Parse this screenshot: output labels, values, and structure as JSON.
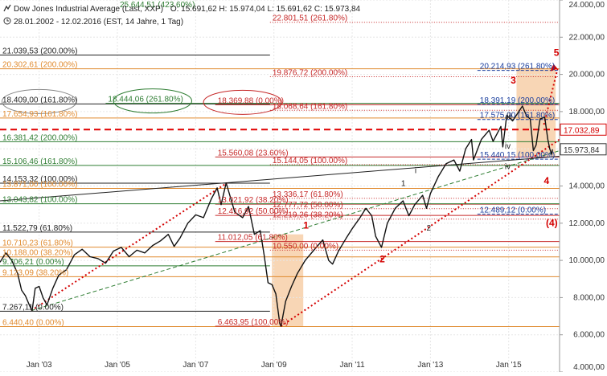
{
  "header": {
    "instrument": "Dow Jones Industrial Average (Last, XXP)",
    "ohlc": "O: 15.691,62  H: 15.974,04  L: 15.691,62  C: 15.973,84",
    "range": "28.01.2002 - 12.02.2016 (EST, 14 Jahre, 1 Tag)"
  },
  "chart_data": {
    "type": "line",
    "ylim": [
      4000,
      24000
    ],
    "y_ticks": [
      "4.000,00",
      "6.000,00",
      "8.000,00",
      "10.000,00",
      "12.000,00",
      "14.000,00",
      "16.000,00",
      "18.000,00",
      "20.000,00",
      "22.000,00",
      "24.000,00"
    ],
    "y_tick_values": [
      4000,
      6000,
      8000,
      10000,
      12000,
      14000,
      16000,
      18000,
      20000,
      22000,
      24000
    ],
    "x_ticks": [
      "Jan '03",
      "Jan '05",
      "Jan '07",
      "Jan '09",
      "Jan '11",
      "Jan '13",
      "Jan '15"
    ],
    "x_tick_years": [
      2003,
      2005,
      2007,
      2009,
      2011,
      2013,
      2015
    ],
    "xlim": [
      2002.0,
      2016.3
    ],
    "series": [
      {
        "values": [
          [
            2002.0,
            9900
          ],
          [
            2002.15,
            10400
          ],
          [
            2002.3,
            10000
          ],
          [
            2002.45,
            9300
          ],
          [
            2002.55,
            8400
          ],
          [
            2002.65,
            8100
          ],
          [
            2002.75,
            7600
          ],
          [
            2002.82,
            7290
          ],
          [
            2002.9,
            8500
          ],
          [
            2003.0,
            8600
          ],
          [
            2003.1,
            8000
          ],
          [
            2003.2,
            7600
          ],
          [
            2003.35,
            8500
          ],
          [
            2003.5,
            9200
          ],
          [
            2003.7,
            9500
          ],
          [
            2003.9,
            10300
          ],
          [
            2004.1,
            10600
          ],
          [
            2004.3,
            10200
          ],
          [
            2004.5,
            10100
          ],
          [
            2004.7,
            9850
          ],
          [
            2004.9,
            10500
          ],
          [
            2005.1,
            10700
          ],
          [
            2005.3,
            10200
          ],
          [
            2005.5,
            10550
          ],
          [
            2005.7,
            10400
          ],
          [
            2005.9,
            10800
          ],
          [
            2006.1,
            11050
          ],
          [
            2006.3,
            11400
          ],
          [
            2006.45,
            10750
          ],
          [
            2006.6,
            11200
          ],
          [
            2006.8,
            12000
          ],
          [
            2007.0,
            12450
          ],
          [
            2007.2,
            12300
          ],
          [
            2007.4,
            13300
          ],
          [
            2007.55,
            13900
          ],
          [
            2007.65,
            13000
          ],
          [
            2007.78,
            14164
          ],
          [
            2007.9,
            13300
          ],
          [
            2008.0,
            12600
          ],
          [
            2008.2,
            12300
          ],
          [
            2008.35,
            12900
          ],
          [
            2008.5,
            11400
          ],
          [
            2008.65,
            11600
          ],
          [
            2008.75,
            10300
          ],
          [
            2008.85,
            8800
          ],
          [
            2008.95,
            8700
          ],
          [
            2009.05,
            8200
          ],
          [
            2009.15,
            6600
          ],
          [
            2009.18,
            6464
          ],
          [
            2009.3,
            7800
          ],
          [
            2009.45,
            8600
          ],
          [
            2009.6,
            9300
          ],
          [
            2009.8,
            10000
          ],
          [
            2010.0,
            10500
          ],
          [
            2010.25,
            11100
          ],
          [
            2010.4,
            10000
          ],
          [
            2010.5,
            9800
          ],
          [
            2010.65,
            10500
          ],
          [
            2010.85,
            11200
          ],
          [
            2011.0,
            11700
          ],
          [
            2011.2,
            12300
          ],
          [
            2011.35,
            12800
          ],
          [
            2011.5,
            12400
          ],
          [
            2011.6,
            11300
          ],
          [
            2011.75,
            10700
          ],
          [
            2011.9,
            12000
          ],
          [
            2012.1,
            12800
          ],
          [
            2012.3,
            13200
          ],
          [
            2012.45,
            12400
          ],
          [
            2012.6,
            13000
          ],
          [
            2012.8,
            13500
          ],
          [
            2012.9,
            12800
          ],
          [
            2013.0,
            13600
          ],
          [
            2013.2,
            14500
          ],
          [
            2013.4,
            15200
          ],
          [
            2013.6,
            15400
          ],
          [
            2013.75,
            14800
          ],
          [
            2013.9,
            16000
          ],
          [
            2014.05,
            16500
          ],
          [
            2014.1,
            15400
          ],
          [
            2014.3,
            16500
          ],
          [
            2014.5,
            17000
          ],
          [
            2014.6,
            16400
          ],
          [
            2014.8,
            17200
          ],
          [
            2014.85,
            16100
          ],
          [
            2014.95,
            17800
          ],
          [
            2015.1,
            17500
          ],
          [
            2015.35,
            18300
          ],
          [
            2015.45,
            17800
          ],
          [
            2015.55,
            17600
          ],
          [
            2015.63,
            15900
          ],
          [
            2015.7,
            16200
          ],
          [
            2015.8,
            17600
          ],
          [
            2015.92,
            17700
          ],
          [
            2016.0,
            16500
          ],
          [
            2016.05,
            16000
          ],
          [
            2016.1,
            15700
          ],
          [
            2016.12,
            15974
          ]
        ]
      }
    ],
    "price_tags": [
      {
        "text": "17.032,89",
        "value": 17032.89,
        "color": "#d40000"
      },
      {
        "text": "15.973,84",
        "value": 15973.84,
        "color": "#333333"
      }
    ],
    "horizontal_levels": [
      {
        "value": 25644.51,
        "label": "25.644,51 (423.60%)",
        "color": "#2e7d32",
        "x0": 2005.0,
        "x1": 2008.0
      },
      {
        "value": 22801.51,
        "label": "22.801,51 (261.80%)",
        "color": "#c62828",
        "x0": 2008.9,
        "x1": 2016.3,
        "dotted": true
      },
      {
        "value": 21039.53,
        "label": "21.039,53 (200.00%)",
        "color": "#222222",
        "x0": 2002.0,
        "x1": 2008.9
      },
      {
        "value": 20302.61,
        "label": "20.302,61 (200.00%)",
        "color": "#e08a2e",
        "x0": 2002.0,
        "x1": 2016.3
      },
      {
        "value": 19876.72,
        "label": "19.876,72 (200.00%)",
        "color": "#c62828",
        "x0": 2008.9,
        "x1": 2016.3,
        "dotted": true
      },
      {
        "value": 20214.93,
        "label": "20.214,93 (261.80%)",
        "color": "#1a3e9e",
        "x0": 2014.2,
        "x1": 2016.3,
        "dashed": true
      },
      {
        "value": 18409.0,
        "label": "18.409,00 (161.80%)",
        "color": "#222222",
        "x0": 2002.0,
        "x1": 2008.9
      },
      {
        "value": 18444.06,
        "label": "18.444,06 (261.80%)",
        "color": "#2e7d32",
        "x0": 2004.7,
        "x1": 2016.3
      },
      {
        "value": 18369.88,
        "label": "18.369,88 (0.00%)",
        "color": "#c62828",
        "x0": 2007.5,
        "x1": 2016.3
      },
      {
        "value": 17654.93,
        "label": "17.654,93 (161.80%)",
        "color": "#e08a2e",
        "x0": 2002.0,
        "x1": 2016.3
      },
      {
        "value": 18068.64,
        "label": "18.068,64 (161.80%)",
        "color": "#c62828",
        "x0": 2008.9,
        "x1": 2016.3,
        "dotted": true
      },
      {
        "value": 18391.19,
        "label": "18.391,19 (200.00%)",
        "color": "#1a3e9e",
        "x0": 2014.2,
        "x1": 2016.3,
        "dashed": true
      },
      {
        "value": 17575.0,
        "label": "17.575,00 (161.80%)",
        "color": "#1a3e9e",
        "x0": 2014.2,
        "x1": 2016.3,
        "dashed": true
      },
      {
        "value": 16381.42,
        "label": "16.381,42 (200.00%)",
        "color": "#2e7d32",
        "x0": 2002.0,
        "x1": 2016.3
      },
      {
        "value": 15560.08,
        "label": "15.560,08 (23.60%)",
        "color": "#c62828",
        "x0": 2007.5,
        "x1": 2016.3
      },
      {
        "value": 15106.46,
        "label": "15.106,46 (161.80%)",
        "color": "#2e7d32",
        "x0": 2002.0,
        "x1": 2016.3
      },
      {
        "value": 15144.05,
        "label": "15.144,05 (100.00%)",
        "color": "#c62828",
        "x0": 2008.9,
        "x1": 2016.3,
        "dotted": true
      },
      {
        "value": 15440.15,
        "label": "15.440,15 (100.00%)",
        "color": "#1a3e9e",
        "x0": 2014.2,
        "x1": 2016.3,
        "dashed": true
      },
      {
        "value": 14153.32,
        "label": "14.153,32 (100.00%)",
        "color": "#222222",
        "x0": 2002.0,
        "x1": 2008.9
      },
      {
        "value": 13871.0,
        "label": "13.871,00 (100.00%)",
        "color": "#e08a2e",
        "x0": 2002.0,
        "x1": 2016.3
      },
      {
        "value": 13021.92,
        "label": "13.021,92 (38.20%)",
        "color": "#c62828",
        "x0": 2007.5,
        "x1": 2016.3
      },
      {
        "value": 13043.82,
        "label": "13.043,82 (100.00%)",
        "color": "#2e7d32",
        "x0": 2002.0,
        "x1": 2016.3
      },
      {
        "value": 13336.17,
        "label": "13.336,17 (61.80%)",
        "color": "#c62828",
        "x0": 2008.9,
        "x1": 2016.3,
        "dotted": true
      },
      {
        "value": 12777.72,
        "label": "12.777,72 (50.00%)",
        "color": "#c62828",
        "x0": 2008.9,
        "x1": 2016.3,
        "dotted": true
      },
      {
        "value": 12219.26,
        "label": "12.219,26 (38.20%)",
        "color": "#c62828",
        "x0": 2008.9,
        "x1": 2016.3,
        "dotted": true
      },
      {
        "value": 12489.12,
        "label": "12.489,12 (0.00%)",
        "color": "#1a3e9e",
        "x0": 2014.2,
        "x1": 2016.3,
        "dashed": true
      },
      {
        "value": 12416.92,
        "label": "12.416,92 (50.00%)",
        "color": "#c62828",
        "x0": 2007.5,
        "x1": 2016.3
      },
      {
        "value": 11522.79,
        "label": "11.522,79 (61.80%)",
        "color": "#222222",
        "x0": 2002.0,
        "x1": 2008.9
      },
      {
        "value": 11012.05,
        "label": "11.012,05 (61.80%)",
        "color": "#c62828",
        "x0": 2007.5,
        "x1": 2016.3
      },
      {
        "value": 10710.23,
        "label": "10.710,23 (61.80%)",
        "color": "#e08a2e",
        "x0": 2002.0,
        "x1": 2016.3
      },
      {
        "value": 10550.0,
        "label": "10.550,00 (0.00%)",
        "color": "#c62828",
        "x0": 2008.9,
        "x1": 2016.3,
        "dotted": true
      },
      {
        "value": 10188.0,
        "label": "10.188,00 (38.20%)",
        "color": "#e08a2e",
        "x0": 2002.0,
        "x1": 2016.3
      },
      {
        "value": 9706.21,
        "label": "9.706,21 (0.00%)",
        "color": "#2e7d32",
        "x0": 2002.0,
        "x1": 2008.9
      },
      {
        "value": 9123.09,
        "label": "9.123,09 (38.20%)",
        "color": "#e08a2e",
        "x0": 2002.0,
        "x1": 2016.3
      },
      {
        "value": 7267.11,
        "label": "7.267,11 (0.00%)",
        "color": "#222222",
        "x0": 2002.0,
        "x1": 2008.9
      },
      {
        "value": 6440.4,
        "label": "6.440,40 (0.00%)",
        "color": "#e08a2e",
        "x0": 2002.0,
        "x1": 2016.3
      },
      {
        "value": 6463.95,
        "label": "6.463,95 (100.00%)",
        "color": "#c62828",
        "x0": 2007.5,
        "x1": 2008.9
      }
    ],
    "dashed_red_level": 17032.89,
    "trendlines": [
      {
        "from": [
          2002.8,
          7300
        ],
        "to": [
          2007.8,
          14164
        ],
        "color": "#d40000",
        "style": "dotted"
      },
      {
        "from": [
          2009.18,
          6464
        ],
        "to": [
          2016.3,
          16500
        ],
        "color": "#d40000",
        "style": "dotted"
      },
      {
        "from": [
          2002.8,
          7300
        ],
        "to": [
          2016.3,
          15900
        ],
        "color": "#2e7d32",
        "style": "dashed"
      },
      {
        "from": [
          2002.0,
          13200
        ],
        "to": [
          2016.3,
          15600
        ],
        "color": "#222222",
        "style": "solid"
      },
      {
        "from": [
          2015.9,
          17300
        ],
        "to": [
          2016.25,
          20300
        ],
        "color": "#d40000",
        "style": "dotted"
      }
    ],
    "shaded_zones": [
      {
        "x0": 2008.95,
        "x1": 2009.75,
        "y0": 6464,
        "y1": 11400
      },
      {
        "x0": 2015.2,
        "x1": 2016.2,
        "y0": 15600,
        "y1": 20300
      }
    ],
    "wave_labels": [
      {
        "text": "1",
        "x": 2009.75,
        "y": 11700,
        "color": "#d40000"
      },
      {
        "text": "2",
        "x": 2011.7,
        "y": 9900,
        "color": "#d40000"
      },
      {
        "text": "3",
        "x": 2015.05,
        "y": 19500,
        "color": "#d40000"
      },
      {
        "text": "4",
        "x": 2015.9,
        "y": 14100,
        "color": "#d40000"
      },
      {
        "text": "5",
        "x": 2016.15,
        "y": 21000,
        "color": "#d40000"
      },
      {
        "text": "(4)",
        "x": 2015.95,
        "y": 11850,
        "color": "#d40000"
      },
      {
        "text": "1",
        "x": 2012.25,
        "y": 14000,
        "color": "#222222"
      },
      {
        "text": "2",
        "x": 2012.9,
        "y": 11600,
        "color": "#222222"
      },
      {
        "text": "i",
        "x": 2012.6,
        "y": 14700,
        "color": "#222222"
      },
      {
        "text": "iii",
        "x": 2014.95,
        "y": 17600,
        "color": "#222222"
      },
      {
        "text": "iv",
        "x": 2014.9,
        "y": 16000,
        "color": "#222222"
      },
      {
        "text": "iv",
        "x": 2014.9,
        "y": 14900,
        "color": "#222222"
      }
    ],
    "ellipses": [
      {
        "cx": 2003.0,
        "cy": 18409.0,
        "rx": 0.95,
        "color": "#888888"
      },
      {
        "cx": 2005.9,
        "cy": 18444.06,
        "rx": 1.0,
        "color": "#2e7d32"
      },
      {
        "cx": 2008.2,
        "cy": 18369.88,
        "rx": 1.0,
        "color": "#c62828"
      }
    ]
  }
}
